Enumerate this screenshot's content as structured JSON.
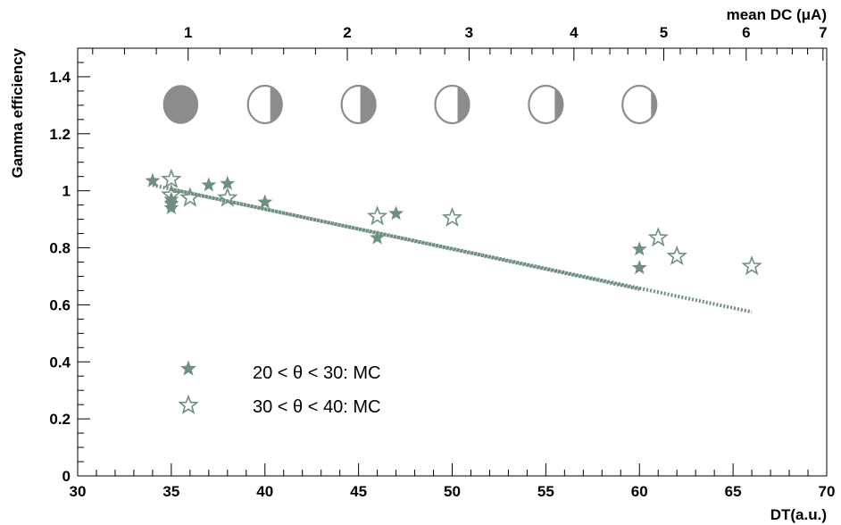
{
  "chart_data": {
    "type": "scatter",
    "title": "",
    "xlabel": "DT(a.u.)",
    "ylabel": "Gamma efficiency",
    "x2label": "mean DC (μA)",
    "xlim": [
      30,
      70
    ],
    "ylim": [
      0,
      1.5
    ],
    "x_ticks": [
      30,
      35,
      40,
      45,
      50,
      55,
      60,
      65,
      70
    ],
    "y_ticks": [
      0,
      0.2,
      0.4,
      0.6,
      0.8,
      1,
      1.2,
      1.4
    ],
    "x_tick_labels": [
      "30",
      "35",
      "40",
      "45",
      "50",
      "55",
      "60",
      "65",
      "70"
    ],
    "y_tick_labels": [
      "0",
      "0.2",
      "0.4",
      "0.6",
      "0.8",
      "1",
      "1.2",
      "1.4"
    ],
    "top_axis": {
      "labels": [
        "1",
        "2",
        "3",
        "4",
        "5",
        "6",
        "7"
      ],
      "positions_dt": [
        35.9,
        44.4,
        50.9,
        56.5,
        61.3,
        65.7,
        69.8
      ]
    },
    "moon_icons_at_dt": [
      35.5,
      40.0,
      45.0,
      50.0,
      55.0,
      60.0
    ],
    "grid": false,
    "legend_position": "bottom-left",
    "series": [
      {
        "name": "20 < θ < 30: MC",
        "marker": "filled-star",
        "color": "#6f8f7f",
        "x": [
          34,
          35,
          35,
          35,
          37,
          38,
          40,
          46,
          47,
          60,
          60
        ],
        "y": [
          1.035,
          0.94,
          0.955,
          0.97,
          1.02,
          1.025,
          0.96,
          0.835,
          0.92,
          0.795,
          0.73
        ],
        "fit": {
          "x": [
            34,
            60
          ],
          "y": [
            1.02,
            0.655
          ]
        }
      },
      {
        "name": "30 < θ < 40: MC",
        "marker": "open-star",
        "color": "#6f8f7f",
        "x": [
          35,
          35,
          36,
          38,
          46,
          50,
          61,
          62,
          66
        ],
        "y": [
          1.04,
          0.985,
          0.975,
          0.975,
          0.91,
          0.905,
          0.835,
          0.77,
          0.735
        ],
        "fit": {
          "x": [
            35,
            66
          ],
          "y": [
            1.005,
            0.575
          ]
        }
      }
    ]
  }
}
